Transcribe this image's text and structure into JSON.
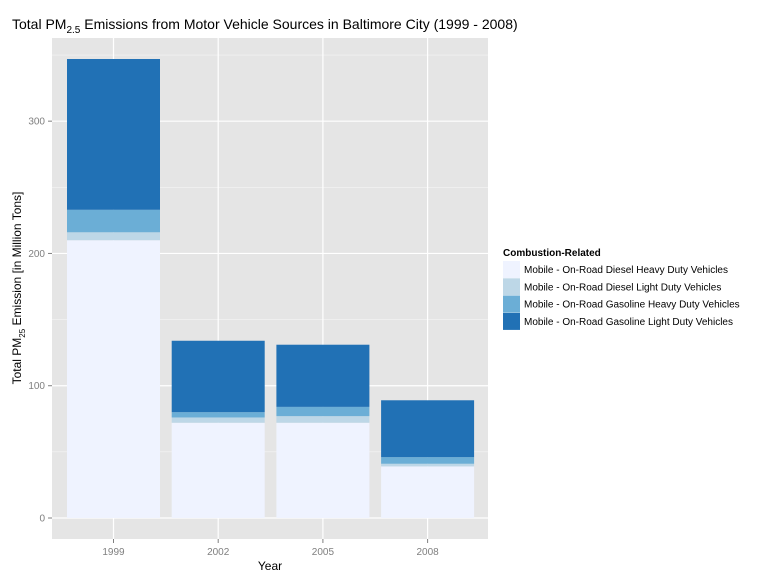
{
  "chart_data": {
    "type": "bar",
    "stacked": true,
    "title_parts": [
      "Total PM",
      "2.5",
      " Emissions from Motor Vehicle Sources in Baltimore City (1999 - 2008)"
    ],
    "xlabel": "Year",
    "ylabel_parts": [
      "Total PM",
      "25",
      " Emission [in Million Tons]"
    ],
    "categories": [
      "1999",
      "2002",
      "2005",
      "2008"
    ],
    "ylim": [
      0,
      365
    ],
    "yticks": [
      0,
      100,
      200,
      300
    ],
    "legend": {
      "title": "Combustion-Related",
      "placement": "right"
    },
    "series": [
      {
        "name": "Mobile - On-Road Diesel Heavy Duty Vehicles",
        "color": "#eff3ff",
        "values": [
          210,
          72,
          72,
          39
        ]
      },
      {
        "name": "Mobile - On-Road Diesel Light Duty Vehicles",
        "color": "#bdd7e7",
        "values": [
          6,
          4,
          5,
          2
        ]
      },
      {
        "name": "Mobile - On-Road Gasoline Heavy Duty Vehicles",
        "color": "#6baed6",
        "values": [
          17,
          4,
          7,
          5
        ]
      },
      {
        "name": "Mobile - On-Road Gasoline Light Duty Vehicles",
        "color": "#2171b5",
        "values": [
          114,
          54,
          47,
          43
        ]
      }
    ],
    "panel_color": "#e5e5e5",
    "grid": true,
    "grid_color": "#ffffff"
  }
}
